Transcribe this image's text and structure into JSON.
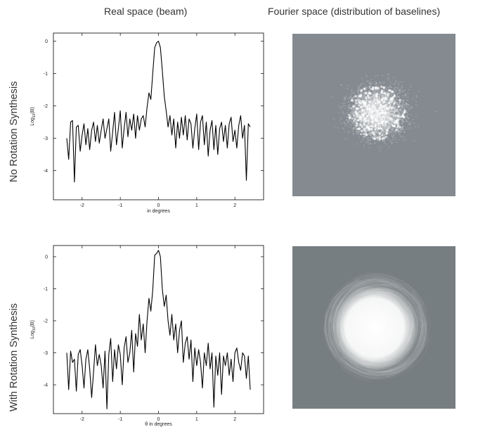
{
  "columns": {
    "real_title": "Real space (beam)",
    "fourier_title": "Fourier space (distribution of baselines)"
  },
  "rows": {
    "top_label": "No Rotation Synthesis",
    "bottom_label": "With Rotation Synthesis"
  },
  "colors": {
    "uv_background_top": "#848a90",
    "uv_background_bottom": "#777e81",
    "uv_points": "#ffffff",
    "line": "#000000"
  },
  "chart_data": [
    {
      "type": "line",
      "panel": "no-rotation-beam",
      "xlabel": "in degrees",
      "ylabel": "Log10(B)",
      "xlim": [
        -2.75,
        2.75
      ],
      "ylim": [
        -4.9,
        0.25
      ],
      "xticks": [
        -2,
        -1,
        0,
        1,
        2
      ],
      "yticks": [
        0,
        -1,
        -2,
        -3,
        -4
      ],
      "grid": false,
      "series": [
        {
          "x": [
            -2.4,
            -2.35,
            -2.3,
            -2.25,
            -2.2,
            -2.15,
            -2.1,
            -2.05,
            -2.0,
            -1.95,
            -1.9,
            -1.85,
            -1.8,
            -1.75,
            -1.7,
            -1.65,
            -1.6,
            -1.55,
            -1.5,
            -1.45,
            -1.4,
            -1.35,
            -1.3,
            -1.25,
            -1.2,
            -1.15,
            -1.1,
            -1.05,
            -1.0,
            -0.95,
            -0.9,
            -0.85,
            -0.8,
            -0.75,
            -0.7,
            -0.65,
            -0.6,
            -0.55,
            -0.5,
            -0.45,
            -0.4,
            -0.35,
            -0.3,
            -0.25,
            -0.2,
            -0.15,
            -0.1,
            -0.05,
            0.0,
            0.05,
            0.1,
            0.15,
            0.2,
            0.25,
            0.3,
            0.35,
            0.4,
            0.45,
            0.5,
            0.55,
            0.6,
            0.65,
            0.7,
            0.75,
            0.8,
            0.85,
            0.9,
            0.95,
            1.0,
            1.05,
            1.1,
            1.15,
            1.2,
            1.25,
            1.3,
            1.35,
            1.4,
            1.45,
            1.5,
            1.55,
            1.6,
            1.65,
            1.7,
            1.75,
            1.8,
            1.85,
            1.9,
            1.95,
            2.0,
            2.05,
            2.1,
            2.15,
            2.2,
            2.25,
            2.3,
            2.35
          ],
          "y": [
            -3.0,
            -3.65,
            -2.5,
            -2.45,
            -4.35,
            -2.65,
            -2.6,
            -3.4,
            -2.9,
            -2.55,
            -3.2,
            -2.7,
            -3.35,
            -2.75,
            -2.5,
            -3.1,
            -2.6,
            -3.15,
            -2.75,
            -2.4,
            -3.0,
            -2.7,
            -2.4,
            -3.4,
            -2.8,
            -2.2,
            -3.2,
            -2.7,
            -2.15,
            -3.3,
            -2.7,
            -2.2,
            -2.95,
            -2.4,
            -2.75,
            -2.25,
            -3.0,
            -2.3,
            -2.75,
            -2.4,
            -2.3,
            -2.65,
            -2.05,
            -1.6,
            -1.8,
            -1.0,
            -0.2,
            -0.05,
            0.0,
            -0.2,
            -0.9,
            -1.7,
            -2.15,
            -2.65,
            -2.3,
            -2.9,
            -2.4,
            -3.3,
            -2.5,
            -3.0,
            -2.35,
            -2.9,
            -2.3,
            -3.05,
            -2.4,
            -2.55,
            -3.3,
            -2.7,
            -2.25,
            -3.35,
            -2.5,
            -2.3,
            -3.2,
            -2.5,
            -3.55,
            -2.75,
            -2.45,
            -3.35,
            -2.6,
            -3.5,
            -2.7,
            -2.5,
            -3.1,
            -2.6,
            -3.3,
            -2.55,
            -2.35,
            -3.1,
            -2.75,
            -3.3,
            -2.6,
            -2.3,
            -3.0,
            -2.6,
            -4.3,
            -2.55
          ],
          "x_end": 2.4,
          "y_end": -2.65
        }
      ]
    },
    {
      "type": "line",
      "panel": "rotation-beam",
      "xlabel": "θ in degrees",
      "ylabel": "Log10(B)",
      "xlim": [
        -2.75,
        2.75
      ],
      "ylim": [
        -4.9,
        0.35
      ],
      "xticks": [
        -2,
        -1,
        0,
        1,
        2
      ],
      "yticks": [
        0,
        -1,
        -2,
        -3,
        -4
      ],
      "grid": false,
      "series": [
        {
          "x": [
            -2.4,
            -2.35,
            -2.3,
            -2.25,
            -2.2,
            -2.15,
            -2.1,
            -2.05,
            -2.0,
            -1.95,
            -1.9,
            -1.85,
            -1.8,
            -1.75,
            -1.7,
            -1.65,
            -1.6,
            -1.55,
            -1.5,
            -1.45,
            -1.4,
            -1.35,
            -1.3,
            -1.25,
            -1.2,
            -1.15,
            -1.1,
            -1.05,
            -1.0,
            -0.95,
            -0.9,
            -0.85,
            -0.8,
            -0.75,
            -0.7,
            -0.65,
            -0.6,
            -0.55,
            -0.5,
            -0.45,
            -0.4,
            -0.35,
            -0.3,
            -0.25,
            -0.2,
            -0.15,
            -0.1,
            -0.05,
            0.0,
            0.05,
            0.1,
            0.15,
            0.2,
            0.25,
            0.3,
            0.35,
            0.4,
            0.45,
            0.5,
            0.55,
            0.6,
            0.65,
            0.7,
            0.75,
            0.8,
            0.85,
            0.9,
            0.95,
            1.0,
            1.05,
            1.1,
            1.15,
            1.2,
            1.25,
            1.3,
            1.35,
            1.4,
            1.45,
            1.5,
            1.55,
            1.6,
            1.65,
            1.7,
            1.75,
            1.8,
            1.85,
            1.9,
            1.95,
            2.0,
            2.05,
            2.1,
            2.15,
            2.2,
            2.25,
            2.3,
            2.35
          ],
          "y": [
            -3.0,
            -4.15,
            -2.95,
            -3.3,
            -3.2,
            -4.2,
            -3.05,
            -2.9,
            -3.4,
            -4.1,
            -3.2,
            -2.9,
            -3.5,
            -4.4,
            -3.6,
            -2.75,
            -3.4,
            -3.05,
            -3.4,
            -4.1,
            -2.95,
            -4.75,
            -3.05,
            -2.55,
            -3.9,
            -2.9,
            -3.5,
            -2.75,
            -3.05,
            -4.0,
            -2.85,
            -2.5,
            -3.3,
            -3.0,
            -2.3,
            -3.6,
            -2.4,
            -2.8,
            -1.8,
            -2.6,
            -2.1,
            -3.0,
            -2.0,
            -1.3,
            -1.7,
            -1.05,
            0.05,
            0.1,
            0.2,
            0.0,
            -1.0,
            -1.55,
            -1.2,
            -2.0,
            -2.45,
            -1.8,
            -2.6,
            -2.1,
            -3.0,
            -2.3,
            -2.0,
            -3.3,
            -2.7,
            -2.5,
            -3.2,
            -2.6,
            -3.9,
            -2.85,
            -3.4,
            -2.9,
            -3.3,
            -4.1,
            -3.0,
            -3.4,
            -2.7,
            -3.5,
            -3.0,
            -4.7,
            -3.1,
            -3.7,
            -3.0,
            -4.3,
            -3.1,
            -3.4,
            -3.0,
            -3.7,
            -3.2,
            -3.9,
            -3.0,
            -2.85,
            -3.3,
            -3.55,
            -3.0,
            -3.1,
            -3.8,
            -3.1
          ],
          "x_end": 2.4,
          "y_end": -4.15
        }
      ]
    }
  ]
}
